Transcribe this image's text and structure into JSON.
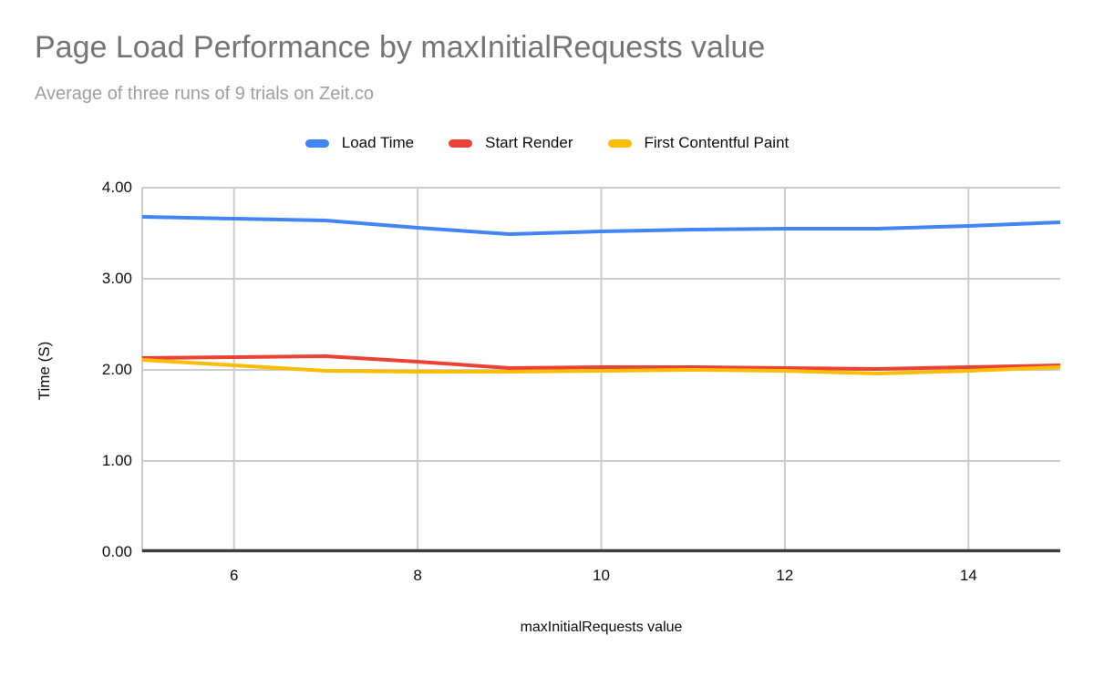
{
  "chart_data": {
    "type": "line",
    "title": "Page Load Performance by maxInitialRequests value",
    "subtitle": "Average of three runs of 9 trials on Zeit.co",
    "xlabel": "maxInitialRequests value",
    "ylabel": "Time (S)",
    "x": [
      5,
      6,
      7,
      8,
      9,
      10,
      11,
      12,
      13,
      14,
      15
    ],
    "series": [
      {
        "name": "Load Time",
        "color": "#4285F4",
        "values": [
          3.68,
          3.66,
          3.64,
          3.56,
          3.49,
          3.52,
          3.54,
          3.55,
          3.55,
          3.58,
          3.62
        ]
      },
      {
        "name": "Start Render",
        "color": "#EA4335",
        "values": [
          2.13,
          2.14,
          2.15,
          2.09,
          2.02,
          2.03,
          2.03,
          2.02,
          2.01,
          2.03,
          2.05
        ]
      },
      {
        "name": "First Contentful Paint",
        "color": "#FBBC04",
        "values": [
          2.11,
          2.05,
          1.99,
          1.98,
          1.98,
          1.99,
          2.0,
          1.99,
          1.96,
          1.99,
          2.03
        ]
      }
    ],
    "xlim": [
      5,
      15
    ],
    "ylim": [
      0,
      4
    ],
    "yticks": [
      0,
      1,
      2,
      3,
      4
    ],
    "ytick_labels": [
      "0.00",
      "1.00",
      "2.00",
      "3.00",
      "4.00"
    ],
    "xticks": [
      6,
      8,
      10,
      12,
      14
    ],
    "xtick_labels": [
      "6",
      "8",
      "10",
      "12",
      "14"
    ],
    "grid": true,
    "legend_position": "top"
  },
  "style": {
    "title_color": "#757575",
    "subtitle_color": "#9e9e9e",
    "gridline_color": "#cccccc",
    "axis_line_color": "#3e3e3e",
    "text_color": "#0c0c0c",
    "line_width": 4
  }
}
